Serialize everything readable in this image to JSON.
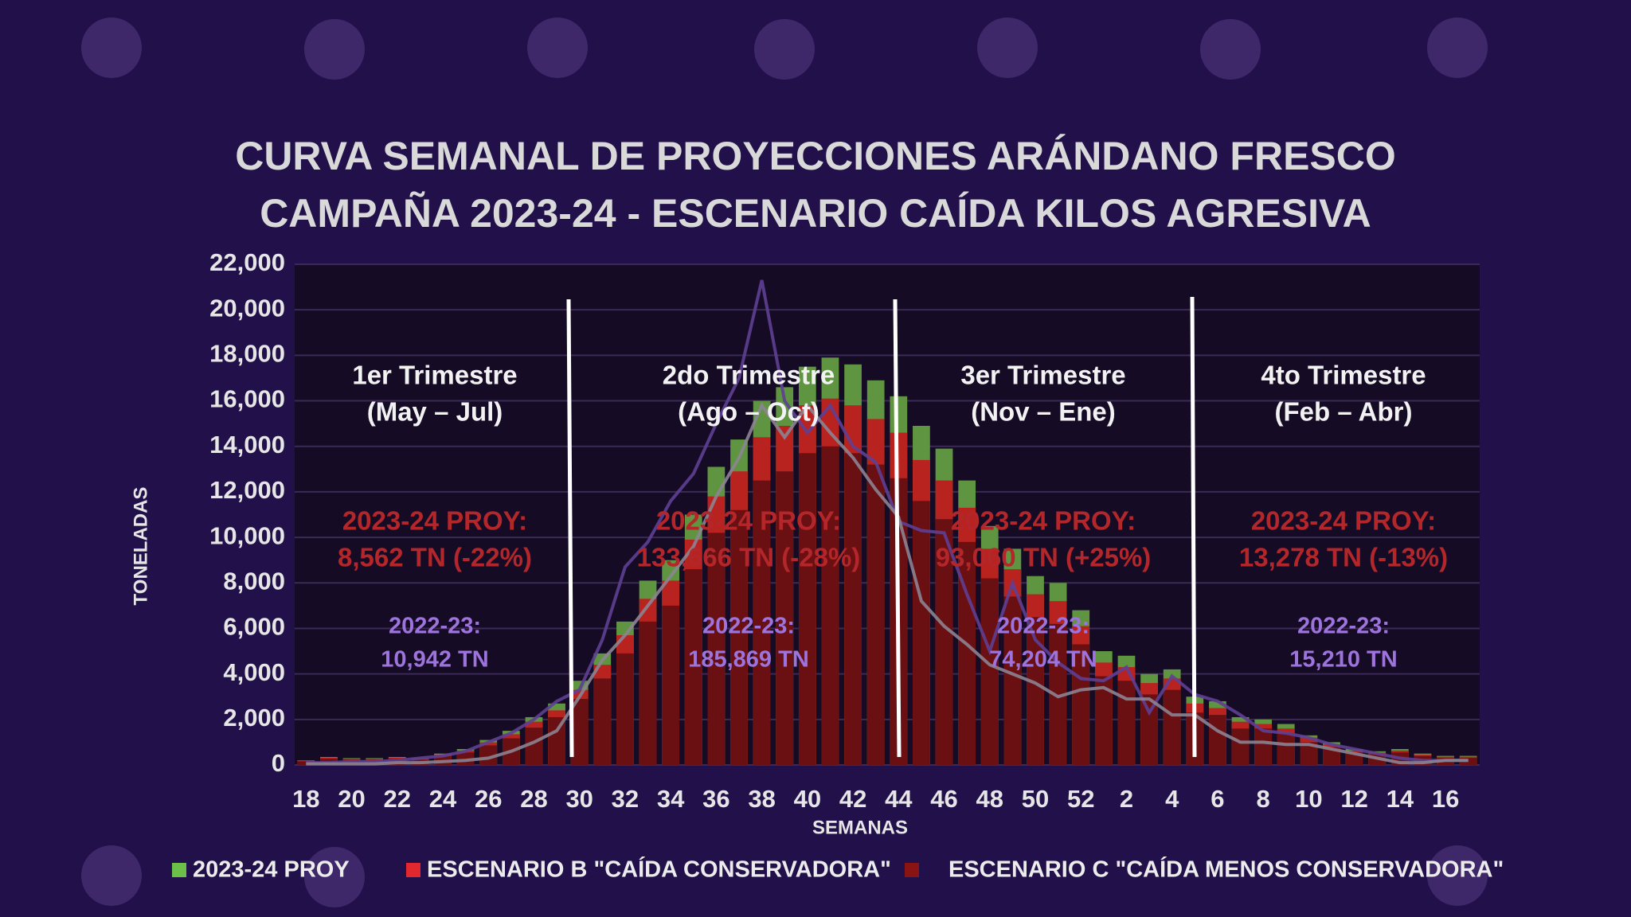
{
  "chart_data": {
    "type": "bar",
    "title": [
      "CURVA SEMANAL DE PROYECCIONES ARÁNDANO FRESCO",
      "CAMPAÑA 2023-24 - ESCENARIO CAÍDA KILOS AGRESIVA"
    ],
    "y_label": "TONELADAS",
    "x_label": "SEMANAS",
    "categories": [
      "18",
      null,
      "20",
      null,
      "22",
      null,
      "24",
      null,
      "26",
      null,
      "28",
      null,
      "30",
      null,
      "32",
      null,
      "34",
      null,
      "36",
      null,
      "38",
      null,
      "40",
      null,
      "42",
      null,
      "44",
      null,
      "46",
      null,
      "48",
      null,
      "50",
      null,
      "52",
      null,
      "2",
      null,
      "4",
      null,
      "6",
      null,
      "8",
      null,
      "10",
      null,
      "12",
      null,
      "14",
      null,
      "16",
      null
    ],
    "series": [
      {
        "name": "2023-24 PROY",
        "color": "#5f9440",
        "legend_color": "#6cc04a",
        "values": [
          200,
          350,
          300,
          300,
          350,
          300,
          500,
          700,
          1100,
          1500,
          2100,
          2700,
          3700,
          4900,
          6300,
          8100,
          9000,
          11000,
          13100,
          14300,
          16000,
          16600,
          17500,
          17900,
          17600,
          16900,
          16200,
          14900,
          13900,
          12500,
          10500,
          9500,
          8300,
          8000,
          6800,
          5000,
          4800,
          4000,
          4200,
          3000,
          2800,
          2100,
          2000,
          1800,
          1300,
          1000,
          700,
          600,
          700,
          500,
          400,
          400
        ]
      },
      {
        "name": "ESCENARIO B \"CAÍDA CONSERVADORA\"",
        "color": "#b8231f",
        "legend_color": "#e0282e",
        "values": [
          180,
          320,
          270,
          270,
          320,
          270,
          450,
          630,
          990,
          1350,
          1900,
          2400,
          3300,
          4400,
          5700,
          7300,
          8100,
          9900,
          11800,
          12900,
          14400,
          14900,
          15800,
          16100,
          15800,
          15200,
          14600,
          13400,
          12500,
          11300,
          9500,
          8600,
          7500,
          7200,
          6100,
          4500,
          4300,
          3600,
          3800,
          2700,
          2500,
          1900,
          1800,
          1600,
          1200,
          900,
          630,
          540,
          630,
          450,
          360,
          360
        ]
      },
      {
        "name": "ESCENARIO C \"CAÍDA MENOS CONSERVADORA\"",
        "color": "#6a1013",
        "legend_color": "#8a1414",
        "values": [
          160,
          270,
          230,
          230,
          270,
          230,
          390,
          550,
          860,
          1170,
          1640,
          2100,
          2900,
          3800,
          4900,
          6300,
          7000,
          8600,
          10200,
          11200,
          12500,
          12900,
          13700,
          14000,
          13700,
          13200,
          12600,
          11600,
          10800,
          9800,
          8200,
          7400,
          6500,
          6200,
          5300,
          3900,
          3700,
          3100,
          3300,
          2300,
          2200,
          1600,
          1600,
          1400,
          1000,
          780,
          550,
          470,
          550,
          390,
          310,
          310
        ]
      }
    ],
    "lines": [
      {
        "color": "#5e3f94",
        "values": [
          100,
          100,
          150,
          150,
          200,
          300,
          400,
          600,
          1000,
          1400,
          2000,
          2800,
          3300,
          5500,
          8700,
          9800,
          11600,
          12800,
          15000,
          17000,
          21300,
          16000,
          14600,
          15800,
          14000,
          13300,
          10700,
          10300,
          10200,
          7500,
          5000,
          8000,
          5500,
          4500,
          3800,
          3700,
          4300,
          2300,
          3900,
          3100,
          2800,
          2200,
          1500,
          1400,
          1200,
          900,
          700,
          500,
          300,
          200,
          200,
          200
        ]
      },
      {
        "color": "#8c8494",
        "values": [
          50,
          50,
          50,
          50,
          100,
          100,
          150,
          200,
          300,
          600,
          1000,
          1500,
          3000,
          4600,
          5700,
          7000,
          8300,
          9600,
          11800,
          13500,
          15800,
          14400,
          15800,
          14600,
          13500,
          12100,
          10900,
          7200,
          6100,
          5300,
          4400,
          4000,
          3600,
          3000,
          3300,
          3400,
          2900,
          2900,
          2200,
          2200,
          1500,
          1000,
          1000,
          900,
          900,
          700,
          500,
          300,
          100,
          100,
          200,
          200
        ]
      }
    ],
    "ylim": [
      0,
      22000
    ],
    "yticks": [
      0,
      {
        "value": 2000,
        "label": "2,000"
      },
      {
        "value": 4000,
        "label": "4,000"
      },
      {
        "value": 6000,
        "label": "6,000"
      },
      {
        "value": 8000,
        "label": "8,000"
      },
      {
        "value": 10000,
        "label": "10,000"
      },
      {
        "value": 12000,
        "label": "12,000"
      },
      {
        "value": 14000,
        "label": "14,000"
      },
      {
        "value": 16000,
        "label": "16,000"
      },
      {
        "value": 18000,
        "label": "18,000"
      },
      {
        "value": 20000,
        "label": "20,000"
      },
      {
        "value": 22000,
        "label": "22,000"
      }
    ],
    "grid": true,
    "legend": "bottom",
    "annotations": [
      {
        "quarter": "1er Trimestre",
        "period": "(May – Jul)",
        "proy": [
          "2023-24 PROY:",
          "8,562 TN (-22%)"
        ],
        "prev": [
          "2022-23:",
          "10,942 TN"
        ]
      },
      {
        "quarter": "2do Trimestre",
        "period": "(Ago – Oct)",
        "proy": [
          "2023-24 PROY:",
          "133,666 TN (-28%)"
        ],
        "prev": [
          "2022-23:",
          "185,869 TN"
        ]
      },
      {
        "quarter": "3er Trimestre",
        "period": "(Nov – Ene)",
        "proy": [
          "2023-24 PROY:",
          "93,060 TN (+25%)"
        ],
        "prev": [
          "2022-23:",
          "74,204 TN"
        ]
      },
      {
        "quarter": "4to Trimestre",
        "period": "(Feb – Abr)",
        "proy": [
          "2023-24 PROY:",
          "13,278 TN (-13%)"
        ],
        "prev": [
          "2022-23:",
          "15,210 TN"
        ]
      }
    ]
  }
}
